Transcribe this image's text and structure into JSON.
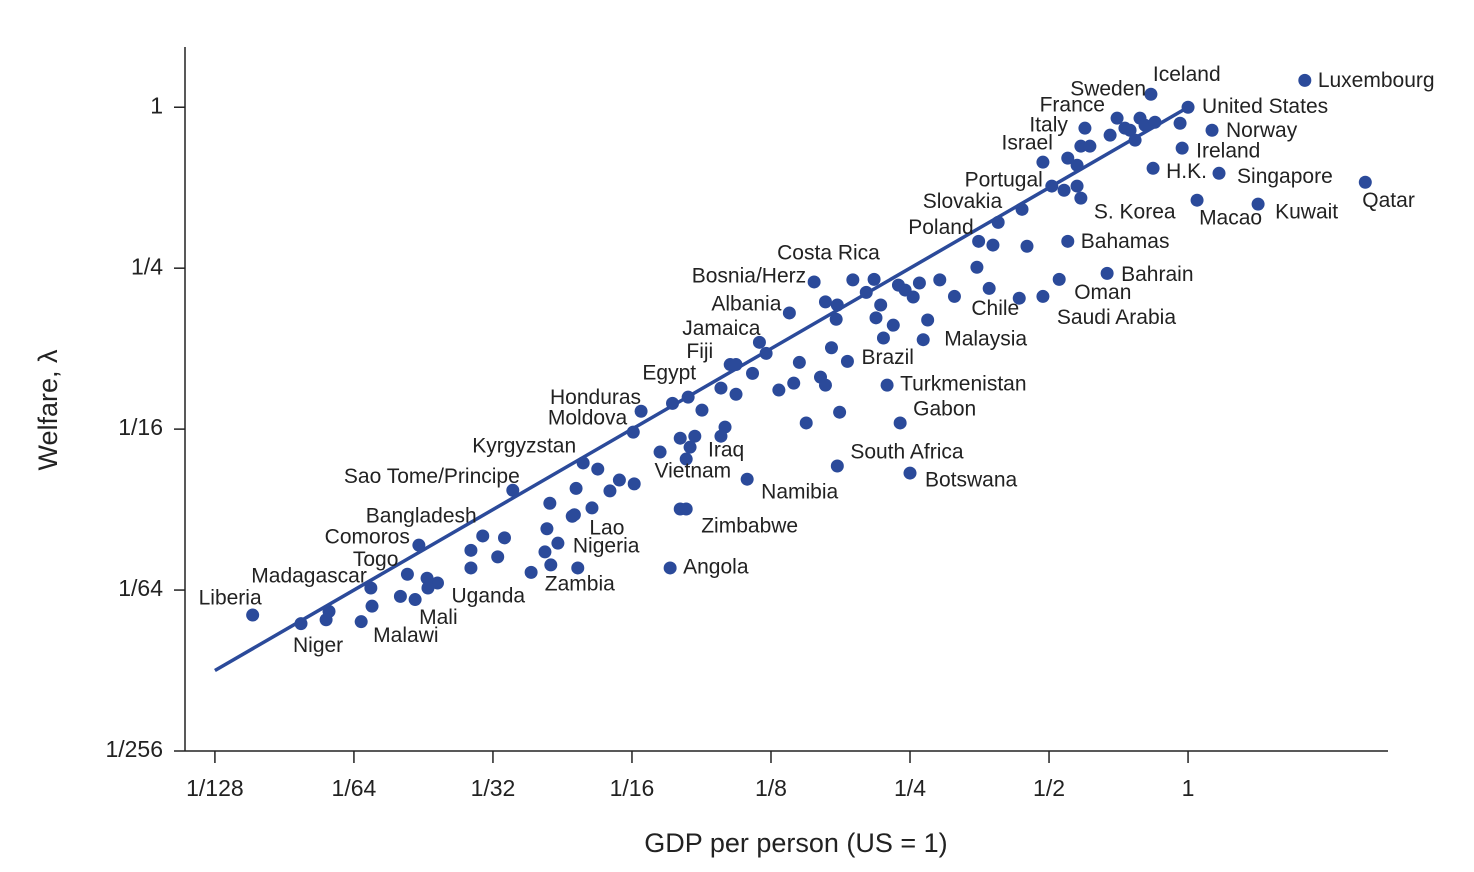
{
  "chart_data": {
    "type": "scatter",
    "xlabel": "GDP per person (US = 1)",
    "ylabel": "Welfare, λ",
    "log_x": true,
    "log_y": true,
    "color": "#2b4a9a",
    "xlim": [
      0.00673,
      2.71
    ],
    "ylim": [
      0.00390625,
      1.68
    ],
    "xticks": [
      {
        "value": 0.0078125,
        "label": "1/128"
      },
      {
        "value": 0.015625,
        "label": "1/64"
      },
      {
        "value": 0.03125,
        "label": "1/32"
      },
      {
        "value": 0.0625,
        "label": "1/16"
      },
      {
        "value": 0.125,
        "label": "1/8"
      },
      {
        "value": 0.25,
        "label": "1/4"
      },
      {
        "value": 0.5,
        "label": "1/2"
      },
      1
    ],
    "yticks": [
      {
        "value": 0.00390625,
        "label": "1/256"
      },
      {
        "value": 0.015625,
        "label": "1/64"
      },
      {
        "value": 0.0625,
        "label": "1/16"
      },
      {
        "value": 0.25,
        "label": "1/4"
      },
      1
    ],
    "fit_line": {
      "x": [
        0.0078125,
        1
      ],
      "values": [
        0.0078125,
        1
      ]
    },
    "labels": [
      "Luxembourg",
      "Iceland",
      "United States",
      "Sweden",
      "France",
      "Italy",
      "Israel",
      "Norway",
      "Ireland",
      "H.K.",
      "Singapore",
      "Qatar",
      "Kuwait",
      "Macao",
      "S. Korea",
      "Portugal",
      "Slovakia",
      "Poland",
      "Bahamas",
      "Bahrain",
      "Oman",
      "Saudi Arabia",
      "Chile",
      "Malaysia",
      "Costa Rica",
      "Bosnia/Herz",
      "Albania",
      "Jamaica",
      "Fiji",
      "Egypt",
      "Brazil",
      "Turkmenistan",
      "Gabon",
      "Honduras",
      "Moldova",
      "Kyrgyzstan",
      "Iraq",
      "Vietnam",
      "South Africa",
      "Botswana",
      "Namibia",
      "Sao Tome/Principe",
      "Zimbabwe",
      "Bangladesh",
      "Comoros",
      "Lao",
      "Nigeria",
      "Togo",
      "Madagascar",
      "Zambia",
      "Angola",
      "Uganda",
      "Liberia",
      "Mali",
      "Niger",
      "Malawi",
      null,
      null,
      null,
      null,
      null,
      null,
      null,
      null,
      null,
      null,
      null,
      null,
      null,
      null,
      null,
      null,
      null,
      null,
      null,
      null,
      null,
      null,
      null,
      null,
      null,
      null,
      null,
      null,
      null,
      null,
      null,
      null,
      null,
      null,
      null,
      null,
      null,
      null,
      null,
      null,
      null,
      null,
      null,
      null,
      null,
      null,
      null,
      null,
      null,
      null,
      null,
      null,
      null,
      null,
      null,
      null,
      null,
      null,
      null,
      null,
      null,
      null,
      null,
      null,
      null,
      null,
      null,
      null,
      null,
      null,
      null,
      null,
      null,
      null,
      null,
      null
    ],
    "x": [
      1.79,
      0.831,
      1,
      0.702,
      0.598,
      0.586,
      0.485,
      1.127,
      0.971,
      0.84,
      1.167,
      2.42,
      1.418,
      1.046,
      0.586,
      0.507,
      0.388,
      0.352,
      0.549,
      0.668,
      0.526,
      0.485,
      0.431,
      0.267,
      0.188,
      0.155,
      0.137,
      0.118,
      0.102,
      0.0827,
      0.183,
      0.223,
      0.238,
      0.0654,
      0.0629,
      0.049,
      0.0994,
      0.0819,
      0.174,
      0.25,
      0.111,
      0.0345,
      0.0795,
      0.0297,
      0.0216,
      0.0469,
      0.0432,
      0.0204,
      0.017,
      0.0417,
      0.0756,
      0.0237,
      0.00943,
      0.0212,
      0.012,
      0.0162,
      0.678,
      0.749,
      0.787,
      0.807,
      0.768,
      0.73,
      0.848,
      0.961,
      0.613,
      0.549,
      0.575,
      0.539,
      0.575,
      0.437,
      0.378,
      0.448,
      0.349,
      0.371,
      0.29,
      0.262,
      0.236,
      0.244,
      0.254,
      0.312,
      0.209,
      0.201,
      0.174,
      0.164,
      0.173,
      0.216,
      0.23,
      0.211,
      0.219,
      0.273,
      0.169,
      0.16,
      0.164,
      0.144,
      0.14,
      0.13,
      0.122,
      0.114,
      0.105,
      0.105,
      0.0974,
      0.0886,
      0.0765,
      0.176,
      0.149,
      0.0974,
      0.0855,
      0.0795,
      0.0835,
      0.0719,
      0.0587,
      0.056,
      0.0632,
      0.0527,
      0.0473,
      0.0512,
      0.0415,
      0.0409,
      0.0331,
      0.028,
      0.032,
      0.0405,
      0.0378,
      0.0477,
      0.028,
      0.0225,
      0.0226,
      0.0197,
      0.0171,
      0.0138,
      0.0136,
      0.0819,
      0.0464
    ],
    "values": [
      1.26,
      1.118,
      1,
      0.91,
      0.835,
      0.715,
      0.623,
      0.82,
      0.703,
      0.591,
      0.566,
      0.524,
      0.434,
      0.449,
      0.457,
      0.507,
      0.371,
      0.315,
      0.315,
      0.239,
      0.227,
      0.196,
      0.193,
      0.135,
      0.226,
      0.222,
      0.17,
      0.132,
      0.109,
      0.0823,
      0.112,
      0.0913,
      0.0659,
      0.0729,
      0.0609,
      0.0467,
      0.0636,
      0.0483,
      0.0455,
      0.0428,
      0.0406,
      0.0369,
      0.0314,
      0.0249,
      0.023,
      0.0299,
      0.0234,
      0.0179,
      0.0159,
      0.0194,
      0.0189,
      0.0166,
      0.0126,
      0.0144,
      0.0117,
      0.0119,
      0.786,
      0.82,
      0.91,
      0.856,
      0.753,
      0.835,
      0.879,
      0.871,
      0.715,
      0.645,
      0.607,
      0.489,
      0.507,
      0.415,
      0.305,
      0.302,
      0.252,
      0.21,
      0.226,
      0.22,
      0.216,
      0.207,
      0.195,
      0.196,
      0.227,
      0.203,
      0.182,
      0.187,
      0.161,
      0.182,
      0.153,
      0.163,
      0.137,
      0.16,
      0.126,
      0.0978,
      0.0913,
      0.111,
      0.0929,
      0.0875,
      0.12,
      0.101,
      0.0844,
      0.109,
      0.089,
      0.0736,
      0.078,
      0.0723,
      0.0659,
      0.0588,
      0.0588,
      0.0578,
      0.0535,
      0.0513,
      0.0403,
      0.0367,
      0.039,
      0.0443,
      0.0375,
      0.0317,
      0.033,
      0.0265,
      0.0245,
      0.022,
      0.0208,
      0.0217,
      0.0182,
      0.0189,
      0.0189,
      0.0173,
      0.0159,
      0.0148,
      0.0136,
      0.013,
      0.0121,
      0.0314,
      0.0295
    ]
  }
}
